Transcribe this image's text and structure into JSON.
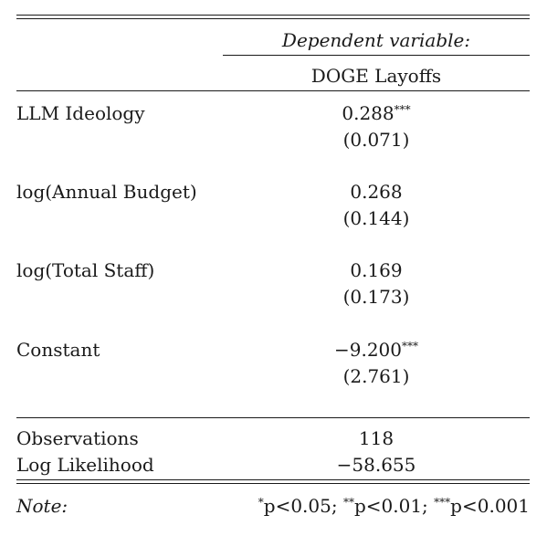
{
  "header": {
    "dependent_variable_label": "Dependent variable:",
    "dependent_variable": "DOGE Layoffs"
  },
  "rows": [
    {
      "label": "LLM Ideology",
      "estimate": "0.288",
      "stars": "***",
      "se": "(0.071)"
    },
    {
      "label": "log(Annual Budget)",
      "estimate": "0.268",
      "stars": "",
      "se": "(0.144)"
    },
    {
      "label": "log(Total Staff)",
      "estimate": "0.169",
      "stars": "",
      "se": "(0.173)"
    },
    {
      "label": "Constant",
      "estimate": "−9.200",
      "stars": "***",
      "se": "(2.761)"
    }
  ],
  "stats": [
    {
      "label": "Observations",
      "value": "118"
    },
    {
      "label": "Log Likelihood",
      "value": "−58.655"
    }
  ],
  "note": {
    "label": "Note:",
    "items": [
      {
        "stars": "*",
        "text": "p<0.05;"
      },
      {
        "stars": "**",
        "text": "p<0.01;"
      },
      {
        "stars": "***",
        "text": "p<0.001"
      }
    ]
  }
}
